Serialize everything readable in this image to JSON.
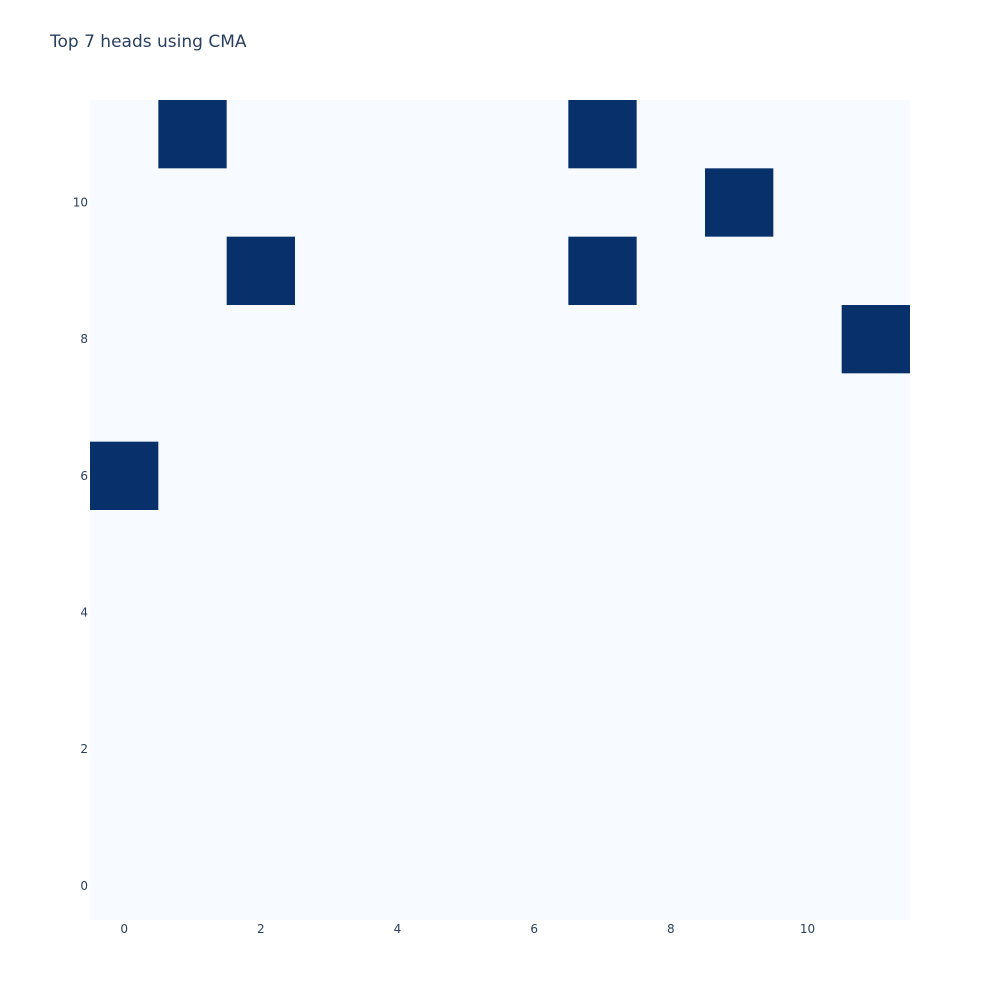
{
  "chart_data": {
    "type": "heatmap",
    "title": "Top 7 heads using CMA",
    "xlabel": "",
    "ylabel": "",
    "x_range": [
      -0.5,
      11.5
    ],
    "y_range": [
      -0.5,
      11.5
    ],
    "x_ticks": [
      0,
      2,
      4,
      6,
      8,
      10
    ],
    "y_ticks": [
      0,
      2,
      4,
      6,
      8,
      10
    ],
    "grid": false,
    "colorscale": {
      "low": "#f7fbff",
      "high": "#08306b"
    },
    "background_value": 0,
    "highlighted_cells": [
      {
        "x": 1,
        "y": 11,
        "value": 1
      },
      {
        "x": 7,
        "y": 11,
        "value": 1
      },
      {
        "x": 9,
        "y": 10,
        "value": 1
      },
      {
        "x": 2,
        "y": 9,
        "value": 1
      },
      {
        "x": 7,
        "y": 9,
        "value": 1
      },
      {
        "x": 11,
        "y": 8,
        "value": 1
      },
      {
        "x": 0,
        "y": 6,
        "value": 1
      }
    ]
  }
}
